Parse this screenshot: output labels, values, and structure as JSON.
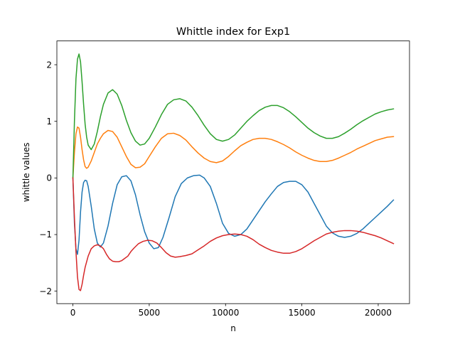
{
  "chart_data": {
    "type": "line",
    "title": "Whittle index for Exp1",
    "xlabel": "n",
    "ylabel": "whittle values",
    "xlim": [
      -1050,
      22050
    ],
    "ylim": [
      -2.22,
      2.42
    ],
    "xticks": [
      0,
      5000,
      10000,
      15000,
      20000
    ],
    "xtick_labels": [
      "0",
      "5000",
      "10000",
      "15000",
      "20000"
    ],
    "yticks": [
      -2,
      -1,
      0,
      1,
      2
    ],
    "ytick_labels": [
      "−2",
      "−1",
      "0",
      "1",
      "2"
    ],
    "grid": false,
    "series": [
      {
        "color": "#1f77b4",
        "points": [
          [
            0,
            0
          ],
          [
            100,
            -0.8
          ],
          [
            200,
            -1.25
          ],
          [
            300,
            -1.35
          ],
          [
            400,
            -1.1
          ],
          [
            500,
            -0.6
          ],
          [
            600,
            -0.25
          ],
          [
            700,
            -0.08
          ],
          [
            800,
            -0.04
          ],
          [
            900,
            -0.05
          ],
          [
            1000,
            -0.15
          ],
          [
            1200,
            -0.5
          ],
          [
            1400,
            -0.9
          ],
          [
            1600,
            -1.15
          ],
          [
            1800,
            -1.22
          ],
          [
            2000,
            -1.15
          ],
          [
            2300,
            -0.85
          ],
          [
            2600,
            -0.45
          ],
          [
            2900,
            -0.12
          ],
          [
            3200,
            0.02
          ],
          [
            3500,
            0.04
          ],
          [
            3800,
            -0.05
          ],
          [
            4100,
            -0.3
          ],
          [
            4400,
            -0.65
          ],
          [
            4700,
            -0.95
          ],
          [
            5000,
            -1.15
          ],
          [
            5300,
            -1.25
          ],
          [
            5600,
            -1.23
          ],
          [
            5900,
            -1.05
          ],
          [
            6300,
            -0.7
          ],
          [
            6700,
            -0.33
          ],
          [
            7100,
            -0.1
          ],
          [
            7500,
            0.0
          ],
          [
            7900,
            0.04
          ],
          [
            8300,
            0.05
          ],
          [
            8600,
            0.0
          ],
          [
            9000,
            -0.15
          ],
          [
            9400,
            -0.45
          ],
          [
            9800,
            -0.8
          ],
          [
            10200,
            -0.98
          ],
          [
            10600,
            -1.03
          ],
          [
            11000,
            -1.0
          ],
          [
            11400,
            -0.9
          ],
          [
            11800,
            -0.74
          ],
          [
            12200,
            -0.58
          ],
          [
            12600,
            -0.42
          ],
          [
            13000,
            -0.28
          ],
          [
            13400,
            -0.15
          ],
          [
            13800,
            -0.08
          ],
          [
            14200,
            -0.06
          ],
          [
            14600,
            -0.06
          ],
          [
            15000,
            -0.12
          ],
          [
            15400,
            -0.25
          ],
          [
            15800,
            -0.45
          ],
          [
            16200,
            -0.65
          ],
          [
            16600,
            -0.85
          ],
          [
            17000,
            -0.97
          ],
          [
            17400,
            -1.03
          ],
          [
            17800,
            -1.05
          ],
          [
            18200,
            -1.03
          ],
          [
            18600,
            -0.98
          ],
          [
            19000,
            -0.9
          ],
          [
            19400,
            -0.8
          ],
          [
            19800,
            -0.7
          ],
          [
            20200,
            -0.6
          ],
          [
            20600,
            -0.5
          ],
          [
            21000,
            -0.39
          ]
        ]
      },
      {
        "color": "#ff7f0e",
        "points": [
          [
            0,
            0
          ],
          [
            100,
            0.45
          ],
          [
            200,
            0.78
          ],
          [
            300,
            0.9
          ],
          [
            400,
            0.88
          ],
          [
            500,
            0.72
          ],
          [
            600,
            0.5
          ],
          [
            700,
            0.32
          ],
          [
            800,
            0.2
          ],
          [
            900,
            0.17
          ],
          [
            1000,
            0.19
          ],
          [
            1200,
            0.3
          ],
          [
            1400,
            0.45
          ],
          [
            1600,
            0.6
          ],
          [
            1800,
            0.7
          ],
          [
            2000,
            0.78
          ],
          [
            2300,
            0.84
          ],
          [
            2600,
            0.82
          ],
          [
            2900,
            0.72
          ],
          [
            3200,
            0.55
          ],
          [
            3500,
            0.38
          ],
          [
            3800,
            0.24
          ],
          [
            4100,
            0.18
          ],
          [
            4400,
            0.19
          ],
          [
            4700,
            0.25
          ],
          [
            5000,
            0.38
          ],
          [
            5400,
            0.55
          ],
          [
            5800,
            0.7
          ],
          [
            6200,
            0.78
          ],
          [
            6600,
            0.79
          ],
          [
            7000,
            0.75
          ],
          [
            7400,
            0.67
          ],
          [
            7800,
            0.55
          ],
          [
            8200,
            0.44
          ],
          [
            8600,
            0.35
          ],
          [
            9000,
            0.29
          ],
          [
            9400,
            0.27
          ],
          [
            9800,
            0.3
          ],
          [
            10200,
            0.38
          ],
          [
            10600,
            0.48
          ],
          [
            11000,
            0.57
          ],
          [
            11400,
            0.63
          ],
          [
            11800,
            0.68
          ],
          [
            12200,
            0.7
          ],
          [
            12600,
            0.7
          ],
          [
            13000,
            0.68
          ],
          [
            13400,
            0.64
          ],
          [
            13800,
            0.59
          ],
          [
            14200,
            0.53
          ],
          [
            14600,
            0.46
          ],
          [
            15000,
            0.4
          ],
          [
            15400,
            0.35
          ],
          [
            15800,
            0.31
          ],
          [
            16200,
            0.29
          ],
          [
            16600,
            0.29
          ],
          [
            17000,
            0.31
          ],
          [
            17400,
            0.35
          ],
          [
            17800,
            0.4
          ],
          [
            18200,
            0.45
          ],
          [
            18600,
            0.51
          ],
          [
            19000,
            0.56
          ],
          [
            19400,
            0.61
          ],
          [
            19800,
            0.66
          ],
          [
            20200,
            0.69
          ],
          [
            20600,
            0.72
          ],
          [
            21000,
            0.73
          ]
        ]
      },
      {
        "color": "#2ca02c",
        "points": [
          [
            0,
            0
          ],
          [
            100,
            1.0
          ],
          [
            200,
            1.75
          ],
          [
            300,
            2.1
          ],
          [
            400,
            2.19
          ],
          [
            500,
            2.05
          ],
          [
            600,
            1.7
          ],
          [
            700,
            1.3
          ],
          [
            800,
            0.95
          ],
          [
            900,
            0.72
          ],
          [
            1000,
            0.58
          ],
          [
            1200,
            0.5
          ],
          [
            1400,
            0.6
          ],
          [
            1600,
            0.82
          ],
          [
            1800,
            1.08
          ],
          [
            2000,
            1.3
          ],
          [
            2300,
            1.5
          ],
          [
            2600,
            1.56
          ],
          [
            2900,
            1.48
          ],
          [
            3200,
            1.28
          ],
          [
            3500,
            1.02
          ],
          [
            3800,
            0.8
          ],
          [
            4100,
            0.65
          ],
          [
            4400,
            0.58
          ],
          [
            4700,
            0.6
          ],
          [
            5000,
            0.7
          ],
          [
            5400,
            0.9
          ],
          [
            5800,
            1.12
          ],
          [
            6200,
            1.3
          ],
          [
            6600,
            1.38
          ],
          [
            7000,
            1.4
          ],
          [
            7400,
            1.36
          ],
          [
            7800,
            1.25
          ],
          [
            8200,
            1.1
          ],
          [
            8600,
            0.93
          ],
          [
            9000,
            0.78
          ],
          [
            9400,
            0.68
          ],
          [
            9800,
            0.65
          ],
          [
            10200,
            0.68
          ],
          [
            10600,
            0.76
          ],
          [
            11000,
            0.88
          ],
          [
            11400,
            1.0
          ],
          [
            11800,
            1.1
          ],
          [
            12200,
            1.19
          ],
          [
            12600,
            1.25
          ],
          [
            13000,
            1.28
          ],
          [
            13400,
            1.28
          ],
          [
            13800,
            1.24
          ],
          [
            14200,
            1.17
          ],
          [
            14600,
            1.08
          ],
          [
            15000,
            0.98
          ],
          [
            15400,
            0.88
          ],
          [
            15800,
            0.8
          ],
          [
            16200,
            0.74
          ],
          [
            16600,
            0.7
          ],
          [
            17000,
            0.7
          ],
          [
            17400,
            0.73
          ],
          [
            17800,
            0.79
          ],
          [
            18200,
            0.86
          ],
          [
            18600,
            0.94
          ],
          [
            19000,
            1.01
          ],
          [
            19400,
            1.07
          ],
          [
            19800,
            1.13
          ],
          [
            20200,
            1.17
          ],
          [
            20600,
            1.2
          ],
          [
            21000,
            1.22
          ]
        ]
      },
      {
        "color": "#d62728",
        "points": [
          [
            0,
            0
          ],
          [
            100,
            -0.7
          ],
          [
            200,
            -1.3
          ],
          [
            300,
            -1.75
          ],
          [
            400,
            -1.97
          ],
          [
            500,
            -1.99
          ],
          [
            600,
            -1.88
          ],
          [
            700,
            -1.72
          ],
          [
            800,
            -1.58
          ],
          [
            1000,
            -1.38
          ],
          [
            1200,
            -1.25
          ],
          [
            1400,
            -1.2
          ],
          [
            1600,
            -1.18
          ],
          [
            1800,
            -1.2
          ],
          [
            2000,
            -1.25
          ],
          [
            2200,
            -1.35
          ],
          [
            2400,
            -1.43
          ],
          [
            2600,
            -1.47
          ],
          [
            2800,
            -1.48
          ],
          [
            3000,
            -1.48
          ],
          [
            3200,
            -1.46
          ],
          [
            3400,
            -1.42
          ],
          [
            3600,
            -1.38
          ],
          [
            3800,
            -1.3
          ],
          [
            4000,
            -1.24
          ],
          [
            4300,
            -1.16
          ],
          [
            4600,
            -1.12
          ],
          [
            4900,
            -1.1
          ],
          [
            5200,
            -1.11
          ],
          [
            5500,
            -1.15
          ],
          [
            5800,
            -1.23
          ],
          [
            6100,
            -1.32
          ],
          [
            6400,
            -1.38
          ],
          [
            6700,
            -1.4
          ],
          [
            7000,
            -1.39
          ],
          [
            7400,
            -1.37
          ],
          [
            7800,
            -1.34
          ],
          [
            8200,
            -1.27
          ],
          [
            8600,
            -1.2
          ],
          [
            9000,
            -1.12
          ],
          [
            9400,
            -1.06
          ],
          [
            9800,
            -1.02
          ],
          [
            10200,
            -1.0
          ],
          [
            10600,
            -0.99
          ],
          [
            11000,
            -1.0
          ],
          [
            11400,
            -1.03
          ],
          [
            11800,
            -1.09
          ],
          [
            12200,
            -1.17
          ],
          [
            12600,
            -1.23
          ],
          [
            13000,
            -1.28
          ],
          [
            13400,
            -1.31
          ],
          [
            13800,
            -1.33
          ],
          [
            14200,
            -1.33
          ],
          [
            14600,
            -1.3
          ],
          [
            15000,
            -1.25
          ],
          [
            15400,
            -1.18
          ],
          [
            15800,
            -1.11
          ],
          [
            16200,
            -1.05
          ],
          [
            16600,
            -0.99
          ],
          [
            17000,
            -0.96
          ],
          [
            17400,
            -0.94
          ],
          [
            17800,
            -0.93
          ],
          [
            18200,
            -0.93
          ],
          [
            18600,
            -0.94
          ],
          [
            19000,
            -0.96
          ],
          [
            19400,
            -0.99
          ],
          [
            19800,
            -1.02
          ],
          [
            20200,
            -1.06
          ],
          [
            20600,
            -1.11
          ],
          [
            21000,
            -1.16
          ]
        ]
      }
    ]
  }
}
